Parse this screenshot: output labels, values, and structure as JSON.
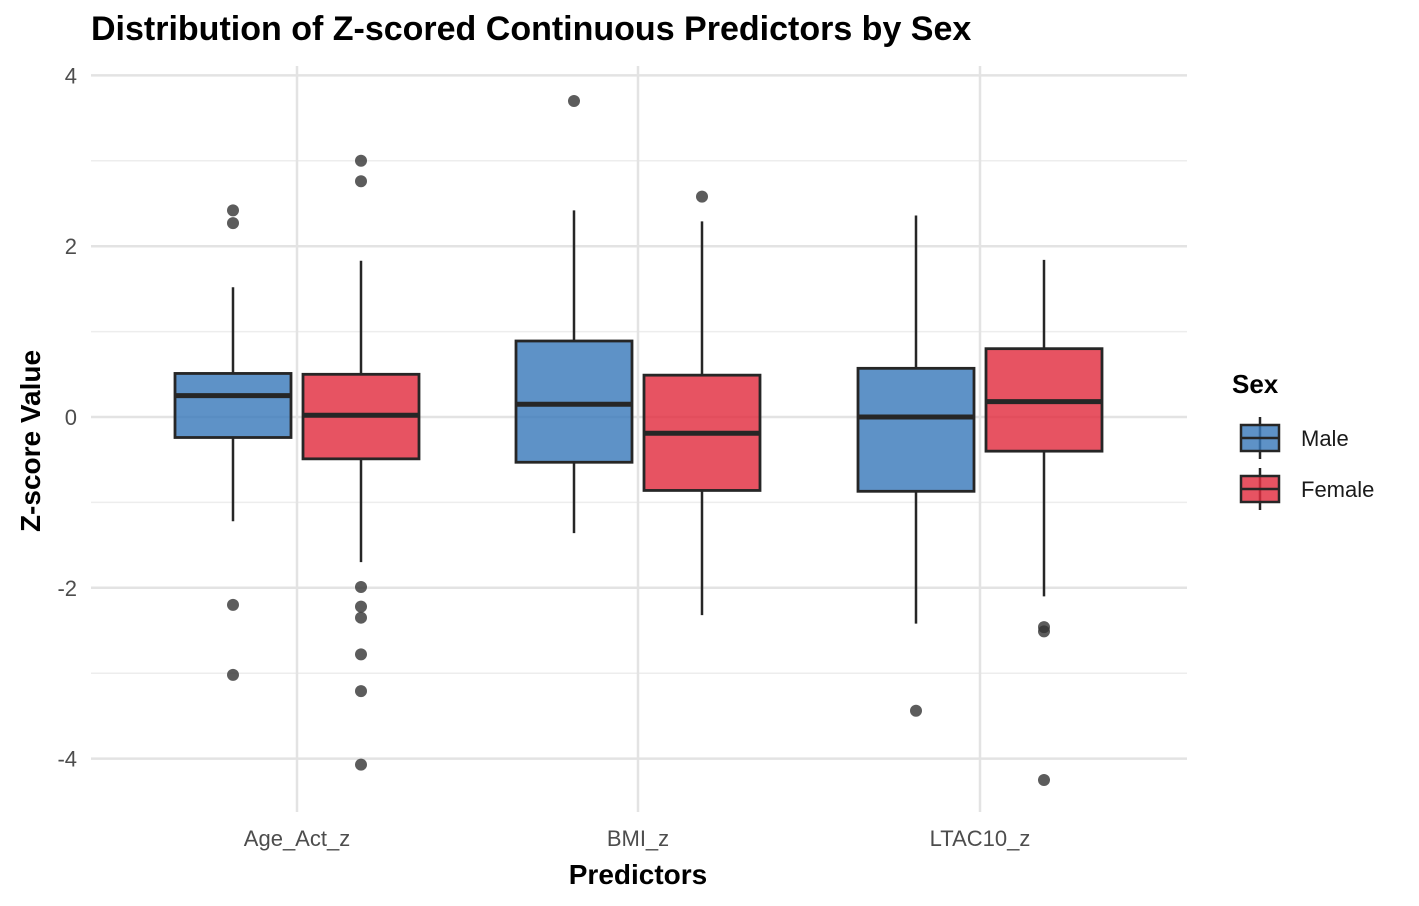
{
  "chart_data": {
    "type": "boxplot",
    "title": "Distribution of Z-scored Continuous Predictors by Sex",
    "xlabel": "Predictors",
    "ylabel": "Z-score Value",
    "categories": [
      "Age_Act_z",
      "BMI_z",
      "LTAC10_z"
    ],
    "ylim": [
      -4.6,
      4.15
    ],
    "yticks": [
      -4,
      -2,
      0,
      2,
      4
    ],
    "grid": true,
    "legend": {
      "title": "Sex",
      "position": "right"
    },
    "series": [
      {
        "name": "Male",
        "color": "#3b7abb",
        "boxes": [
          {
            "category": "Age_Act_z",
            "whisker_low": -1.22,
            "q1": -0.24,
            "median": 0.25,
            "q3": 0.51,
            "whisker_high": 1.52,
            "outliers": [
              2.42,
              2.27,
              -2.2,
              -3.02
            ]
          },
          {
            "category": "BMI_z",
            "whisker_low": -1.36,
            "q1": -0.53,
            "median": 0.15,
            "q3": 0.89,
            "whisker_high": 2.42,
            "outliers": [
              3.7
            ]
          },
          {
            "category": "LTAC10_z",
            "whisker_low": -2.42,
            "q1": -0.87,
            "median": 0.0,
            "q3": 0.57,
            "whisker_high": 2.36,
            "outliers": [
              -3.44
            ]
          }
        ]
      },
      {
        "name": "Female",
        "color": "#e22d40",
        "boxes": [
          {
            "category": "Age_Act_z",
            "whisker_low": -1.7,
            "q1": -0.49,
            "median": 0.02,
            "q3": 0.5,
            "whisker_high": 1.83,
            "outliers": [
              3.0,
              2.76,
              -1.99,
              -2.22,
              -2.35,
              -2.78,
              -3.21,
              -4.07
            ]
          },
          {
            "category": "BMI_z",
            "whisker_low": -2.32,
            "q1": -0.86,
            "median": -0.19,
            "q3": 0.49,
            "whisker_high": 2.29,
            "outliers": [
              2.58
            ]
          },
          {
            "category": "LTAC10_z",
            "whisker_low": -2.1,
            "q1": -0.4,
            "median": 0.18,
            "q3": 0.8,
            "whisker_high": 1.84,
            "outliers": [
              -2.46,
              -2.51,
              -4.25
            ]
          }
        ]
      }
    ]
  }
}
